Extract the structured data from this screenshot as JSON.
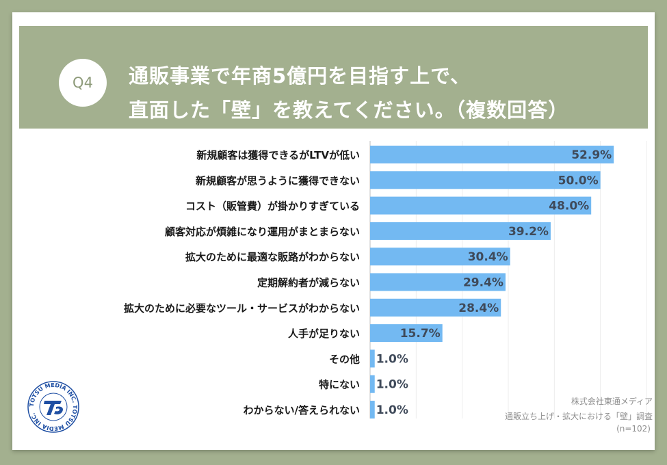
{
  "header": {
    "question_number": "Q4",
    "title_line1": "通販事業で年商5億円を目指す上で、",
    "title_line2": "直面した「壁」を教えてください。（複数回答）"
  },
  "colors": {
    "background": "#a3b08f",
    "bar": "#73b9f2",
    "value_text": "#3f4a5a"
  },
  "logo": {
    "ring_text": "TOTSU MEDIA INC. TOTSU MEDIA INC.",
    "icon": "totsu-media-logo"
  },
  "footer": {
    "source_line1": "株式会社東通メディア",
    "source_line2": "通販立ち上げ・拡大における「壁」調査",
    "sample_size": "(n=102)"
  },
  "chart_data": {
    "type": "bar",
    "orientation": "horizontal",
    "categories": [
      "新規顧客は獲得できるがLTVが低い",
      "新規顧客が思うように獲得できない",
      "コスト（販管費）が掛かりすぎている",
      "顧客対応が煩雑になり運用がまとまらない",
      "拡大のために最適な販路がわからない",
      "定期解約者が減らない",
      "拡大のために必要なツール・サービスがわからない",
      "人手が足りない",
      "その他",
      "特にない",
      "わからない/答えられない"
    ],
    "values": [
      52.9,
      50.0,
      48.0,
      39.2,
      30.4,
      29.4,
      28.4,
      15.7,
      1.0,
      1.0,
      1.0
    ],
    "value_labels": [
      "52.9%",
      "50.0%",
      "48.0%",
      "39.2%",
      "30.4%",
      "29.4%",
      "28.4%",
      "15.7%",
      "1.0%",
      "1.0%",
      "1.0%"
    ],
    "unit": "%",
    "xlim": [
      0,
      60
    ],
    "grid": true
  }
}
